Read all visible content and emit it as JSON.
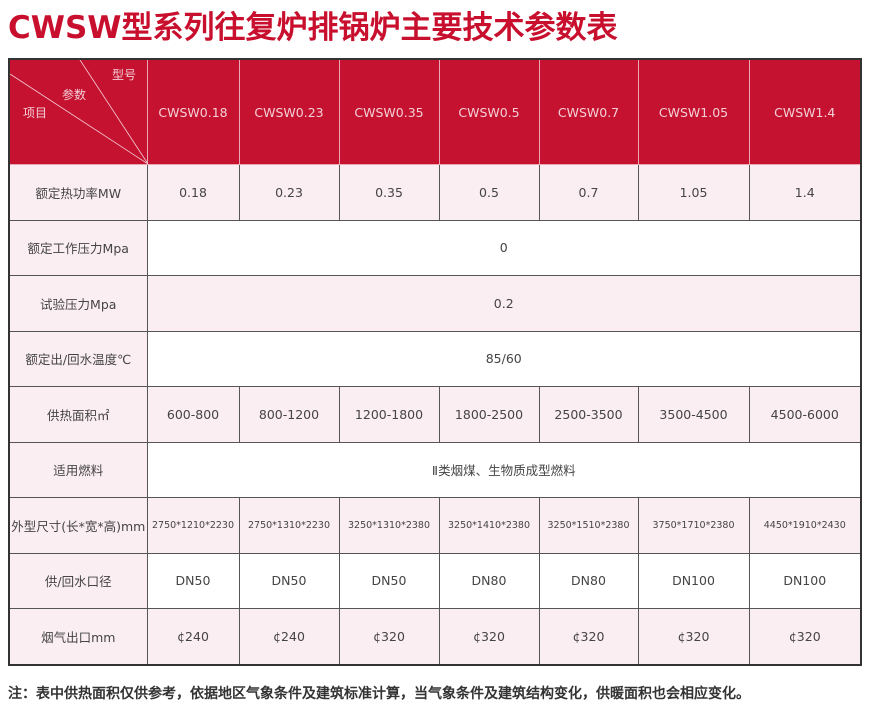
{
  "title": "CWSW型系列往复炉排锅炉主要技术参数表",
  "header": {
    "corner": {
      "model": "型号",
      "param": "参数",
      "item": "项目"
    },
    "models": [
      "CWSW0.18",
      "CWSW0.23",
      "CWSW0.35",
      "CWSW0.5",
      "CWSW0.7",
      "CWSW1.05",
      "CWSW1.4"
    ]
  },
  "rows": [
    {
      "label": "额定热功率MW",
      "values": [
        "0.18",
        "0.23",
        "0.35",
        "0.5",
        "0.7",
        "1.05",
        "1.4"
      ]
    },
    {
      "label": "额定工作压力Mpa",
      "merged": "0"
    },
    {
      "label": "试验压力Mpa",
      "merged": "0.2"
    },
    {
      "label": "额定出/回水温度℃",
      "merged": "85/60"
    },
    {
      "label": "供热面积㎡",
      "values": [
        "600-800",
        "800-1200",
        "1200-1800",
        "1800-2500",
        "2500-3500",
        "3500-4500",
        "4500-6000"
      ]
    },
    {
      "label": "适用燃料",
      "merged": "Ⅱ类烟煤、生物质成型燃料"
    },
    {
      "label": "外型尺寸(长*宽*高)mm",
      "values": [
        "2750*1210*2230",
        "2750*1310*2230",
        "3250*1310*2380",
        "3250*1410*2380",
        "3250*1510*2380",
        "3750*1710*2380",
        "4450*1910*2430"
      ]
    },
    {
      "label": "供/回水口径",
      "values": [
        "DN50",
        "DN50",
        "DN50",
        "DN80",
        "DN80",
        "DN100",
        "DN100"
      ]
    },
    {
      "label": "烟气出口mm",
      "values": [
        "¢240",
        "¢240",
        "¢320",
        "¢320",
        "¢320",
        "¢320",
        "¢320"
      ]
    }
  ],
  "note": "注：表中供热面积仅供参考，依据地区气象条件及建筑标准计算，当气象条件及建筑结构变化，供暖面积也会相应变化。",
  "colors": {
    "accent": "#c41230",
    "row_pink": "#fbeef2"
  }
}
